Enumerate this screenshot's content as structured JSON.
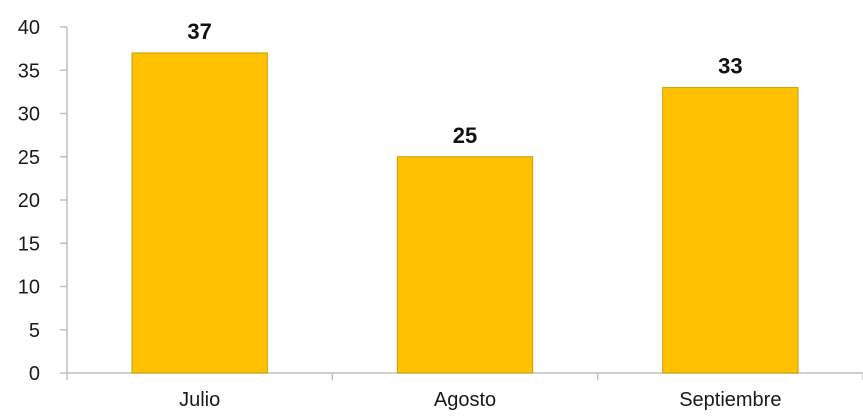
{
  "chart_data": {
    "type": "bar",
    "categories": [
      "Julio",
      "Agosto",
      "Septiembre"
    ],
    "values": [
      37,
      25,
      33
    ],
    "data_labels": [
      "37",
      "25",
      "33"
    ],
    "y_ticks": [
      "0",
      "5",
      "10",
      "15",
      "20",
      "25",
      "30",
      "35",
      "40"
    ],
    "ylim": [
      0,
      40
    ],
    "ytick_step": 5,
    "title": "",
    "xlabel": "",
    "ylabel": "",
    "grid": false,
    "legend": "none",
    "bar_color": "#FFC000",
    "bar_edge_color": "#C9A000",
    "axis_color": "#BFBFBF"
  }
}
